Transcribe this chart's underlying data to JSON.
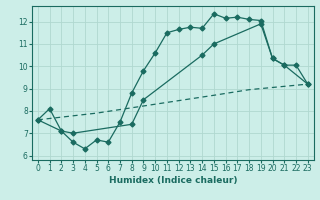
{
  "xlabel": "Humidex (Indice chaleur)",
  "bg_color": "#cceee8",
  "line_color": "#1a6b60",
  "grid_color": "#b0d8d0",
  "xlim": [
    -0.5,
    23.5
  ],
  "ylim": [
    5.8,
    12.7
  ],
  "xticks": [
    0,
    1,
    2,
    3,
    4,
    5,
    6,
    7,
    8,
    9,
    10,
    11,
    12,
    13,
    14,
    15,
    16,
    17,
    18,
    19,
    20,
    21,
    22,
    23
  ],
  "yticks": [
    6,
    7,
    8,
    9,
    10,
    11,
    12
  ],
  "line1_x": [
    0,
    1,
    2,
    3,
    4,
    5,
    6,
    7,
    8,
    9,
    10,
    11,
    12,
    13,
    14,
    15,
    16,
    17,
    18,
    19,
    20,
    21,
    22,
    23
  ],
  "line1_y": [
    7.6,
    8.1,
    7.1,
    6.6,
    6.3,
    6.7,
    6.6,
    7.5,
    8.8,
    9.8,
    10.6,
    11.5,
    11.65,
    11.75,
    11.7,
    12.35,
    12.15,
    12.2,
    12.1,
    12.05,
    10.35,
    10.05,
    10.05,
    9.2
  ],
  "line2_x": [
    0,
    2,
    3,
    8,
    9,
    14,
    15,
    19,
    20,
    21,
    23
  ],
  "line2_y": [
    7.6,
    7.1,
    7.0,
    7.4,
    8.5,
    10.5,
    11.0,
    11.9,
    10.35,
    10.05,
    9.2
  ],
  "line3_x": [
    0,
    5,
    10,
    15,
    18,
    20,
    21,
    22,
    23
  ],
  "line3_y": [
    7.6,
    7.9,
    8.3,
    8.7,
    8.95,
    9.05,
    9.1,
    9.15,
    9.2
  ]
}
